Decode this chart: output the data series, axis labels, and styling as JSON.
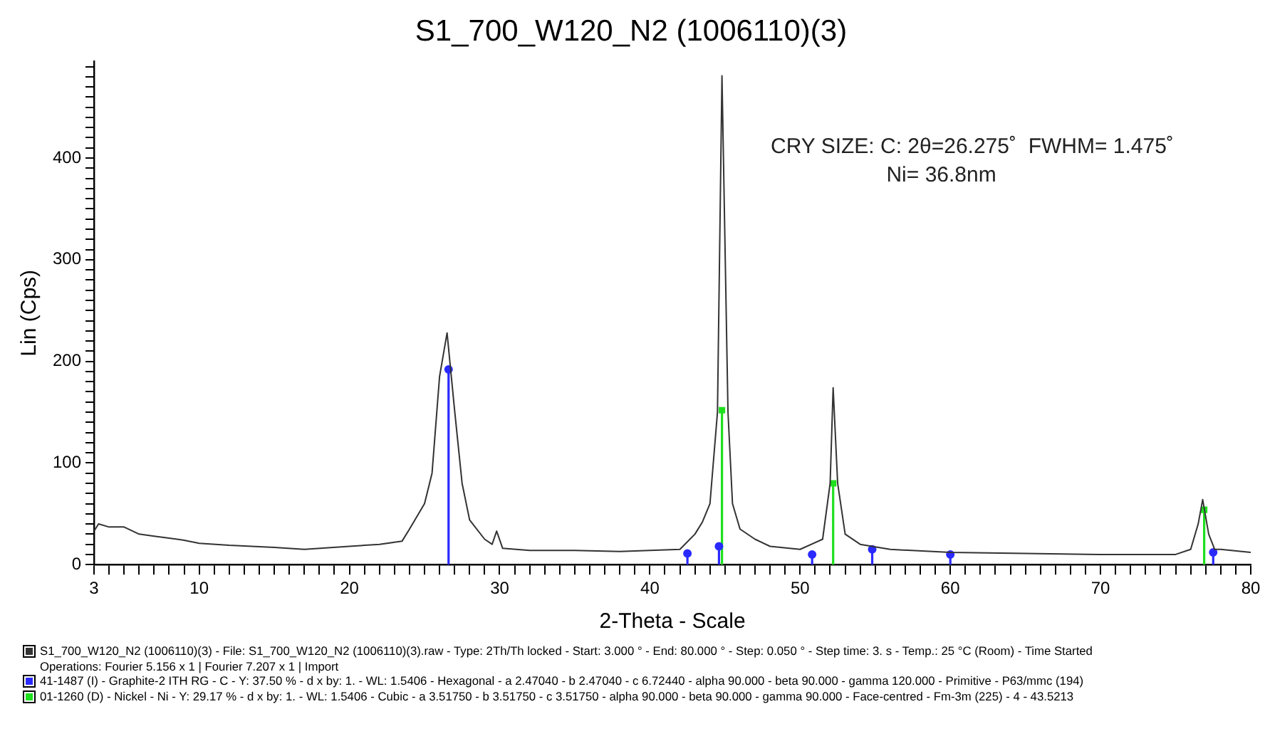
{
  "chart_data": {
    "type": "line",
    "title": "S1_700_W120_N2 (1006110)(3)",
    "xlabel": "2-Theta - Scale",
    "ylabel": "Lin (Cps)",
    "xlim": [
      3,
      80
    ],
    "ylim": [
      0,
      495
    ],
    "xticks": [
      3,
      {
        "value": 4,
        "label": null
      },
      {
        "value": 5,
        "label": null
      },
      {
        "value": 6,
        "label": null
      },
      {
        "value": 7,
        "label": null
      },
      {
        "value": 8,
        "label": null
      },
      {
        "value": 9,
        "label": null
      },
      10,
      {
        "value": 11,
        "label": null
      },
      {
        "value": 12,
        "label": null
      },
      {
        "value": 13,
        "label": null
      },
      {
        "value": 14,
        "label": null
      },
      {
        "value": 15,
        "label": null
      },
      {
        "value": 16,
        "label": null
      },
      {
        "value": 17,
        "label": null
      },
      {
        "value": 18,
        "label": null
      },
      {
        "value": 19,
        "label": null
      },
      20,
      {
        "value": 21,
        "label": null
      },
      {
        "value": 22,
        "label": null
      },
      {
        "value": 23,
        "label": null
      },
      {
        "value": 24,
        "label": null
      },
      {
        "value": 25,
        "label": null
      },
      {
        "value": 26,
        "label": null
      },
      {
        "value": 27,
        "label": null
      },
      {
        "value": 28,
        "label": null
      },
      {
        "value": 29,
        "label": null
      },
      30,
      {
        "value": 31,
        "label": null
      },
      {
        "value": 32,
        "label": null
      },
      {
        "value": 33,
        "label": null
      },
      {
        "value": 34,
        "label": null
      },
      {
        "value": 35,
        "label": null
      },
      {
        "value": 36,
        "label": null
      },
      {
        "value": 37,
        "label": null
      },
      {
        "value": 38,
        "label": null
      },
      {
        "value": 39,
        "label": null
      },
      40,
      {
        "value": 41,
        "label": null
      },
      {
        "value": 42,
        "label": null
      },
      {
        "value": 43,
        "label": null
      },
      {
        "value": 44,
        "label": null
      },
      {
        "value": 45,
        "label": null
      },
      {
        "value": 46,
        "label": null
      },
      {
        "value": 47,
        "label": null
      },
      {
        "value": 48,
        "label": null
      },
      {
        "value": 49,
        "label": null
      },
      50,
      {
        "value": 51,
        "label": null
      },
      {
        "value": 52,
        "label": null
      },
      {
        "value": 53,
        "label": null
      },
      {
        "value": 54,
        "label": null
      },
      {
        "value": 55,
        "label": null
      },
      {
        "value": 56,
        "label": null
      },
      {
        "value": 57,
        "label": null
      },
      {
        "value": 58,
        "label": null
      },
      {
        "value": 59,
        "label": null
      },
      60,
      {
        "value": 61,
        "label": null
      },
      {
        "value": 62,
        "label": null
      },
      {
        "value": 63,
        "label": null
      },
      {
        "value": 64,
        "label": null
      },
      {
        "value": 65,
        "label": null
      },
      {
        "value": 66,
        "label": null
      },
      {
        "value": 67,
        "label": null
      },
      {
        "value": 68,
        "label": null
      },
      {
        "value": 69,
        "label": null
      },
      70,
      {
        "value": 71,
        "label": null
      },
      {
        "value": 72,
        "label": null
      },
      {
        "value": 73,
        "label": null
      },
      {
        "value": 74,
        "label": null
      },
      {
        "value": 75,
        "label": null
      },
      {
        "value": 76,
        "label": null
      },
      {
        "value": 77,
        "label": null
      },
      {
        "value": 78,
        "label": null
      },
      {
        "value": 79,
        "label": null
      },
      80
    ],
    "yticks": [
      0,
      {
        "value": 10,
        "label": null
      },
      {
        "value": 20,
        "label": null
      },
      {
        "value": 30,
        "label": null
      },
      {
        "value": 40,
        "label": null
      },
      {
        "value": 50,
        "label": null
      },
      {
        "value": 60,
        "label": null
      },
      {
        "value": 70,
        "label": null
      },
      {
        "value": 80,
        "label": null
      },
      {
        "value": 90,
        "label": null
      },
      100,
      {
        "value": 110,
        "label": null
      },
      {
        "value": 120,
        "label": null
      },
      {
        "value": 130,
        "label": null
      },
      {
        "value": 140,
        "label": null
      },
      {
        "value": 150,
        "label": null
      },
      {
        "value": 160,
        "label": null
      },
      {
        "value": 170,
        "label": null
      },
      {
        "value": 180,
        "label": null
      },
      {
        "value": 190,
        "label": null
      },
      200,
      {
        "value": 210,
        "label": null
      },
      {
        "value": 220,
        "label": null
      },
      {
        "value": 230,
        "label": null
      },
      {
        "value": 240,
        "label": null
      },
      {
        "value": 250,
        "label": null
      },
      {
        "value": 260,
        "label": null
      },
      {
        "value": 270,
        "label": null
      },
      {
        "value": 280,
        "label": null
      },
      {
        "value": 290,
        "label": null
      },
      300,
      {
        "value": 310,
        "label": null
      },
      {
        "value": 320,
        "label": null
      },
      {
        "value": 330,
        "label": null
      },
      {
        "value": 340,
        "label": null
      },
      {
        "value": 350,
        "label": null
      },
      {
        "value": 360,
        "label": null
      },
      {
        "value": 370,
        "label": null
      },
      {
        "value": 380,
        "label": null
      },
      {
        "value": 390,
        "label": null
      },
      400,
      {
        "value": 410,
        "label": null
      },
      {
        "value": 420,
        "label": null
      },
      {
        "value": 430,
        "label": null
      },
      {
        "value": 440,
        "label": null
      },
      {
        "value": 450,
        "label": null
      },
      {
        "value": 460,
        "label": null
      },
      {
        "value": 470,
        "label": null
      },
      {
        "value": 480,
        "label": null
      },
      {
        "value": 490,
        "label": null
      }
    ],
    "legend": "bottom",
    "annotations": [
      "CRY SIZE: C: 2θ=26.275˚  FWHM= 1.475˚",
      "Ni= 36.8nm",
      "Operations: Fourier 5.156 x 1 | Fourier 7.207 x 1 | Import"
    ],
    "series": [
      {
        "name": "S1_700_W120_N2 (1006110)(3) - File: S1_700_W120_N2 (1006110)(3).raw - Type: 2Th/Th locked - Start: 3.000 ° - End: 80.000 ° - Step: 0.050 ° - Step time: 3. s - Temp.: 25 °C (Room) - Time Started",
        "type": "line",
        "color": "#333333",
        "x": [
          3,
          3.3,
          4,
          5,
          6,
          7,
          8,
          9,
          10,
          12,
          15,
          17,
          20,
          22,
          23.5,
          24,
          25,
          25.5,
          26,
          26.5,
          27,
          27.5,
          28,
          29,
          29.5,
          29.8,
          30.2,
          32,
          35,
          38,
          40,
          42,
          43,
          43.5,
          44,
          44.5,
          44.8,
          45.2,
          45.5,
          46,
          47,
          48,
          50,
          51.5,
          52,
          52.2,
          52.5,
          53,
          54,
          56,
          60,
          65,
          70,
          75,
          76,
          76.5,
          76.8,
          77.2,
          77.6,
          78,
          80
        ],
        "values": [
          33,
          40,
          37,
          37,
          30,
          28,
          26,
          24,
          21,
          19,
          17,
          15,
          18,
          20,
          23,
          35,
          60,
          90,
          185,
          228,
          152,
          80,
          44,
          25,
          20,
          33,
          16,
          14,
          14,
          13,
          14,
          15,
          30,
          42,
          60,
          150,
          481,
          150,
          60,
          35,
          25,
          18,
          15,
          25,
          80,
          174,
          80,
          30,
          20,
          15,
          12,
          11,
          10,
          10,
          15,
          40,
          64,
          30,
          15,
          15,
          12
        ]
      },
      {
        "name": "41-1487 (I) - Graphite-2 ITH RG - C - Y: 37.50 % - d x by: 1. - WL: 1.5406 - Hexagonal - a 2.47040 - b 2.47040 - c 6.72440 - alpha 90.000 - beta 90.000 - gamma 120.000 - Primitive - P63/mmc (194)",
        "type": "lollipop",
        "marker": "circle",
        "color": "#2a2aff",
        "x": [
          26.6,
          42.5,
          44.6,
          50.8,
          54.8,
          60.0,
          77.5
        ],
        "values": [
          192,
          11,
          18,
          10,
          15,
          10,
          12
        ]
      },
      {
        "name": "01-1260 (D) - Nickel - Ni - Y: 29.17 % - d x by: 1. - WL: 1.5406 - Cubic - a 3.51750 - b 3.51750 - c 3.51750 - alpha 90.000 - beta 90.000 - gamma 90.000 - Face-centred - Fm-3m (225) - 4 - 43.5213",
        "type": "lollipop",
        "marker": "square",
        "color": "#1ee01e",
        "x": [
          44.8,
          52.2,
          76.9
        ],
        "values": [
          152,
          80,
          54
        ]
      }
    ]
  }
}
